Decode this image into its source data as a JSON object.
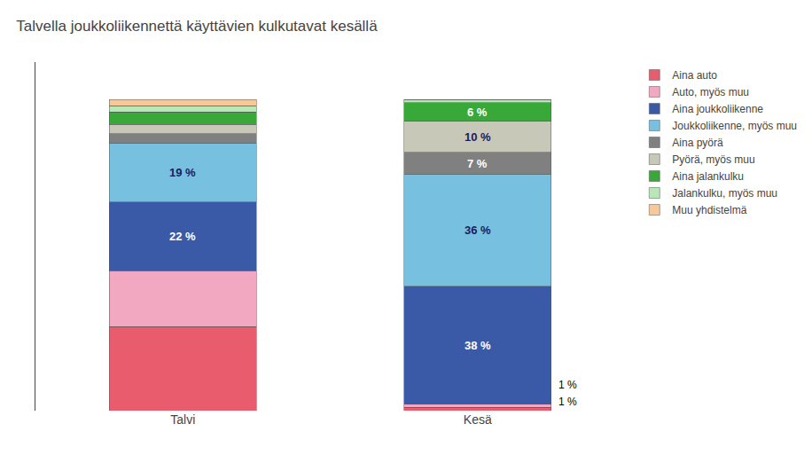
{
  "chart_data": {
    "type": "bar",
    "title": "Talvella joukkoliikennettä käyttävien kulkutavat kesällä",
    "categories": [
      "Talvi",
      "Kesä"
    ],
    "stacked": true,
    "data_labels": true,
    "ylim": [
      0,
      112
    ],
    "tick_labels": "x",
    "grid": false,
    "series": [
      {
        "name": "Aina auto",
        "color": "#e85c6e",
        "values": [
          27,
          1
        ],
        "value_labels": [
          null,
          "1 %"
        ]
      },
      {
        "name": "Auto, myös muu",
        "color": "#f2a8c0",
        "values": [
          18,
          1
        ],
        "value_labels": [
          null,
          "1 %"
        ]
      },
      {
        "name": "Aina joukkoliikenne",
        "color": "#3a5aa8",
        "values": [
          22,
          38
        ],
        "value_labels": [
          "22 %",
          "38 %"
        ]
      },
      {
        "name": "Joukkoliikenne, myös muu",
        "color": "#78c0e0",
        "values": [
          19,
          36
        ],
        "value_labels": [
          "19 %",
          "36 %"
        ]
      },
      {
        "name": "Aina pyörä",
        "color": "#808080",
        "values": [
          3,
          7
        ],
        "value_labels": [
          null,
          "7 %"
        ]
      },
      {
        "name": "Pyörä, myös muu",
        "color": "#c8c8b8",
        "values": [
          3,
          10
        ],
        "value_labels": [
          null,
          "10 %"
        ]
      },
      {
        "name": "Aina jalankulku",
        "color": "#38a838",
        "values": [
          4,
          6
        ],
        "value_labels": [
          null,
          "6 %"
        ]
      },
      {
        "name": "Jalankulku, myös muu",
        "color": "#b8e8b8",
        "values": [
          2,
          1
        ]
      },
      {
        "name": "Muu yhdistelmä",
        "color": "#f8c898",
        "values": [
          2,
          0
        ]
      }
    ]
  }
}
